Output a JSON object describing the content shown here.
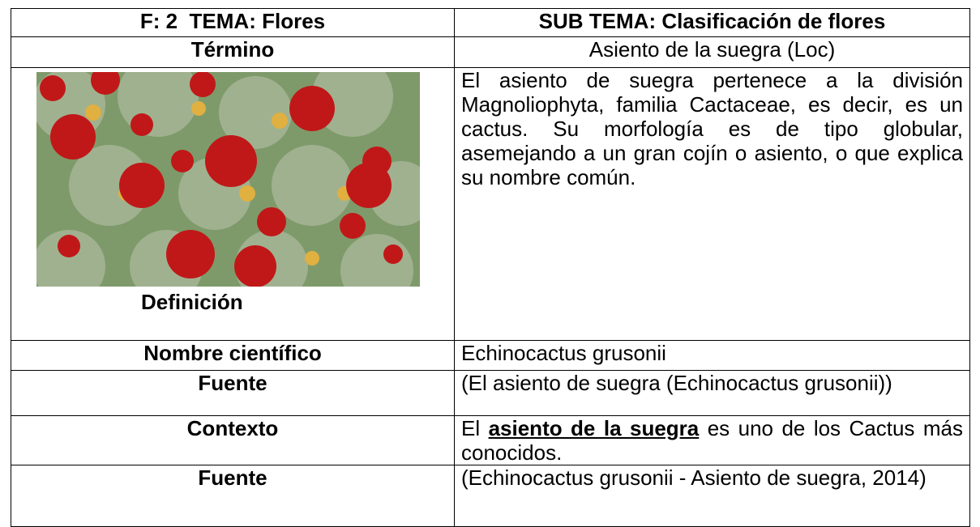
{
  "table": {
    "header": [
      "F: 2  TEMA: Flores",
      "SUB TEMA: Clasificación de flores"
    ],
    "rows": [
      [
        "Término",
        "Asiento de la suegra (Loc)"
      ],
      [
        "Definición",
        "El asiento de suegra pertenece a la división Magnoliophyta, familia Cactaceae, es decir, es un cactus. Su morfología es de tipo globular, asemejando a un gran cojín o asiento, o que explica su nombre común."
      ],
      [
        "Nombre científico",
        "Echinocactus grusonii"
      ],
      [
        "Fuente",
        "(El asiento de suegra (Echinocactus grusonii))"
      ],
      [
        "Contexto",
        [
          "El ",
          "asiento de la suegra",
          " es uno de los Cactus más conocidos."
        ]
      ],
      [
        "Fuente",
        "(Echinocactus grusonii - Asiento de suegra, 2014)"
      ]
    ]
  }
}
